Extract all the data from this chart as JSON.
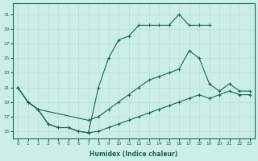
{
  "xlabel": "Humidex (Indice chaleur)",
  "background_color": "#cceee8",
  "grid_color": "#b8ddd8",
  "line_color": "#1a6655",
  "xlim": [
    -0.5,
    23.5
  ],
  "ylim": [
    14,
    32.5
  ],
  "yticks": [
    15,
    17,
    19,
    21,
    23,
    25,
    27,
    29,
    31
  ],
  "xticks": [
    0,
    1,
    2,
    3,
    4,
    5,
    6,
    7,
    8,
    9,
    10,
    11,
    12,
    13,
    14,
    15,
    16,
    17,
    18,
    19,
    20,
    21,
    22,
    23
  ],
  "lines": [
    {
      "x": [
        0,
        1,
        2,
        3,
        4,
        5,
        6,
        7,
        8,
        9,
        10,
        11,
        12,
        13,
        14,
        15,
        16,
        17,
        18,
        19
      ],
      "y": [
        21,
        19,
        18,
        16,
        15.5,
        15.5,
        15,
        14.8,
        21,
        25,
        27.5,
        28,
        29.5,
        29.5,
        29.5,
        29.5,
        31,
        29.5,
        29.5,
        29.5
      ]
    },
    {
      "x": [
        0,
        1,
        2,
        7,
        8,
        9,
        10,
        11,
        12,
        13,
        14,
        15,
        16,
        17,
        18,
        19,
        20,
        21,
        22,
        23
      ],
      "y": [
        21,
        19,
        18,
        16.5,
        17,
        18,
        19,
        20,
        21,
        22,
        22.5,
        23,
        23.5,
        26,
        25,
        21.5,
        20.5,
        21.5,
        20.5,
        20.5
      ]
    },
    {
      "x": [
        0,
        1,
        2,
        3,
        4,
        5,
        6,
        7,
        8,
        9,
        10,
        11,
        12,
        13,
        14,
        15,
        16,
        17,
        18,
        19,
        20,
        21,
        22,
        23
      ],
      "y": [
        21,
        19,
        18,
        16,
        15.5,
        15.5,
        15,
        14.8,
        15,
        15.5,
        16,
        16.5,
        17,
        17.5,
        18,
        18.5,
        19,
        19.5,
        20,
        19.5,
        20,
        20.5,
        20,
        20
      ]
    }
  ]
}
